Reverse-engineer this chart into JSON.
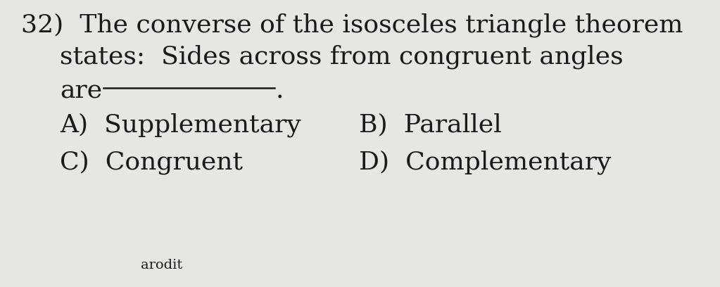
{
  "background_color": "#e8e6e2",
  "question_number": "32)",
  "line1": "The converse of the isosceles triangle theorem",
  "line2": "states:  Sides across from congruent angles",
  "line3_prefix": "are",
  "line3_suffix": ".",
  "option_A": "A)  Supplementary",
  "option_B": "B)  Parallel",
  "option_C": "C)  Congruent",
  "option_D": "D)  Complementary",
  "footer": "arodit",
  "text_color": "#1a1a1a",
  "font_size_main": 26,
  "font_size_options": 26
}
